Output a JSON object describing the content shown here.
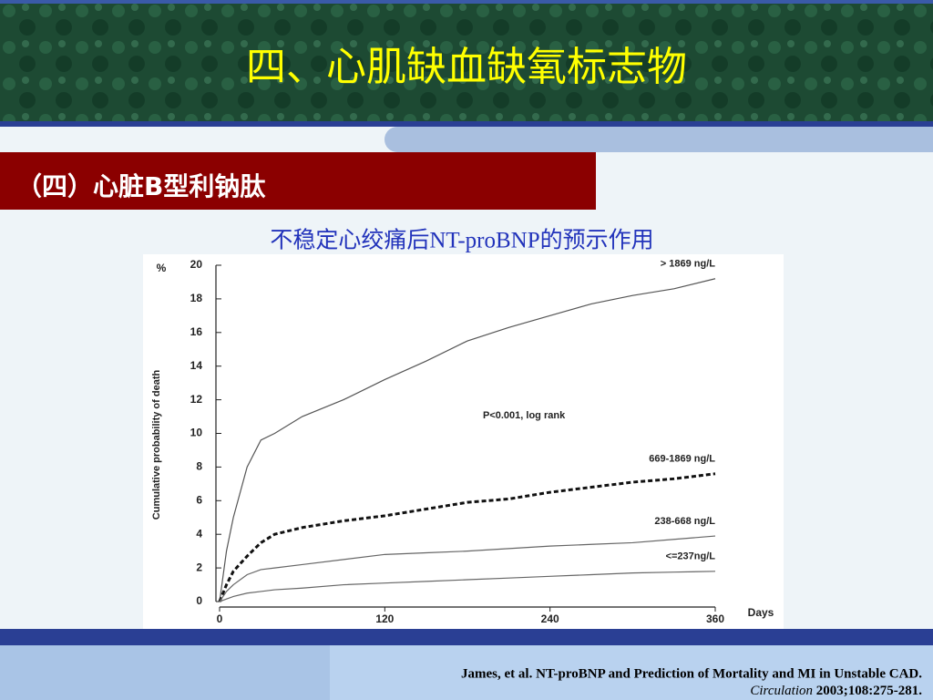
{
  "slide": {
    "title": "四、心肌缺血缺氧标志物",
    "section": "（四）心脏B型利钠肽",
    "subtitle": "不稳定心绞痛后NT-proBNP的预示作用",
    "citation": {
      "line1": "James, et al. NT-proBNP and Prediction of Mortality and MI in Unstable CAD.",
      "journal": "Circulation",
      "rest": " 2003;108:275-281."
    }
  },
  "chart_data": {
    "type": "line",
    "y_unit": "%",
    "y_label": "Cumulative probability of death",
    "x_label": "Days",
    "annotation": "P<0.001, log rank",
    "x": [
      0,
      5,
      10,
      20,
      30,
      40,
      60,
      90,
      120,
      150,
      180,
      210,
      240,
      270,
      300,
      330,
      360
    ],
    "series": [
      {
        "name": "> 1869 ng/L",
        "color": "#555555",
        "line_style": "solid",
        "values": [
          0,
          3,
          5,
          8,
          9.6,
          10,
          11,
          12,
          13.2,
          14.3,
          15.5,
          16.3,
          17,
          17.7,
          18.2,
          18.6,
          19.2
        ]
      },
      {
        "name": "669-1869 ng/L",
        "color": "#111111",
        "line_style": "dashed",
        "values": [
          0,
          1,
          1.8,
          2.7,
          3.5,
          4,
          4.4,
          4.8,
          5.1,
          5.5,
          5.9,
          6.1,
          6.5,
          6.8,
          7.1,
          7.3,
          7.6
        ]
      },
      {
        "name": "238-668 ng/L",
        "color": "#666666",
        "line_style": "solid",
        "values": [
          0,
          0.6,
          1,
          1.6,
          1.9,
          2,
          2.2,
          2.5,
          2.8,
          2.9,
          3,
          3.15,
          3.3,
          3.4,
          3.5,
          3.7,
          3.9
        ]
      },
      {
        "name": "<=237ng/L",
        "color": "#666666",
        "line_style": "solid",
        "values": [
          0,
          0.15,
          0.3,
          0.5,
          0.6,
          0.7,
          0.8,
          1,
          1.1,
          1.2,
          1.3,
          1.4,
          1.5,
          1.6,
          1.7,
          1.75,
          1.8
        ]
      }
    ],
    "xlim": [
      0,
      360
    ],
    "xticks": [
      0,
      120,
      240,
      360
    ],
    "ylim": [
      0,
      20
    ],
    "yticks": [
      0,
      2,
      4,
      6,
      8,
      10,
      12,
      14,
      16,
      18,
      20
    ]
  }
}
